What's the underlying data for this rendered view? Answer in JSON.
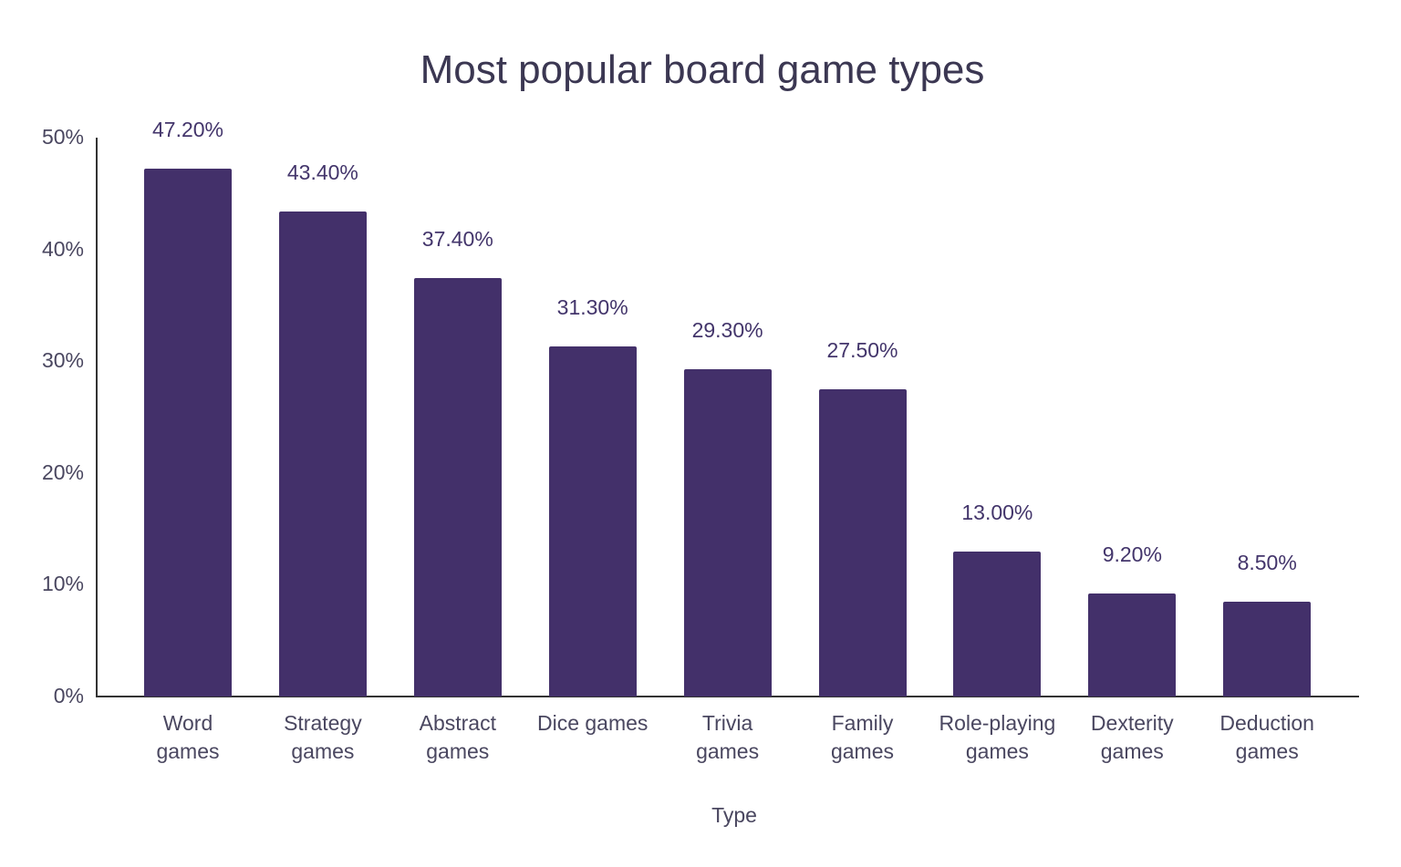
{
  "chart_data": {
    "type": "bar",
    "title": "Most popular board game types",
    "xlabel": "Type",
    "ylabel": "",
    "ylim": [
      0,
      50
    ],
    "yticks": [
      "0%",
      "10%",
      "20%",
      "30%",
      "40%",
      "50%"
    ],
    "grid": false,
    "legend": null,
    "bar_color": "#43306a",
    "categories": [
      [
        "Word",
        "games"
      ],
      [
        "Strategy",
        "games"
      ],
      [
        "Abstract",
        "games"
      ],
      [
        "Dice games",
        ""
      ],
      [
        "Trivia",
        "games"
      ],
      [
        "Family",
        "games"
      ],
      [
        "Role-playing",
        "games"
      ],
      [
        "Dexterity",
        "games"
      ],
      [
        "Deduction",
        "games"
      ]
    ],
    "values": [
      47.2,
      43.4,
      37.4,
      31.3,
      29.3,
      27.5,
      13.0,
      9.2,
      8.5
    ],
    "value_labels": [
      "47.20%",
      "43.40%",
      "37.40%",
      "31.30%",
      "29.30%",
      "27.50%",
      "13.00%",
      "9.20%",
      "8.50%"
    ]
  }
}
